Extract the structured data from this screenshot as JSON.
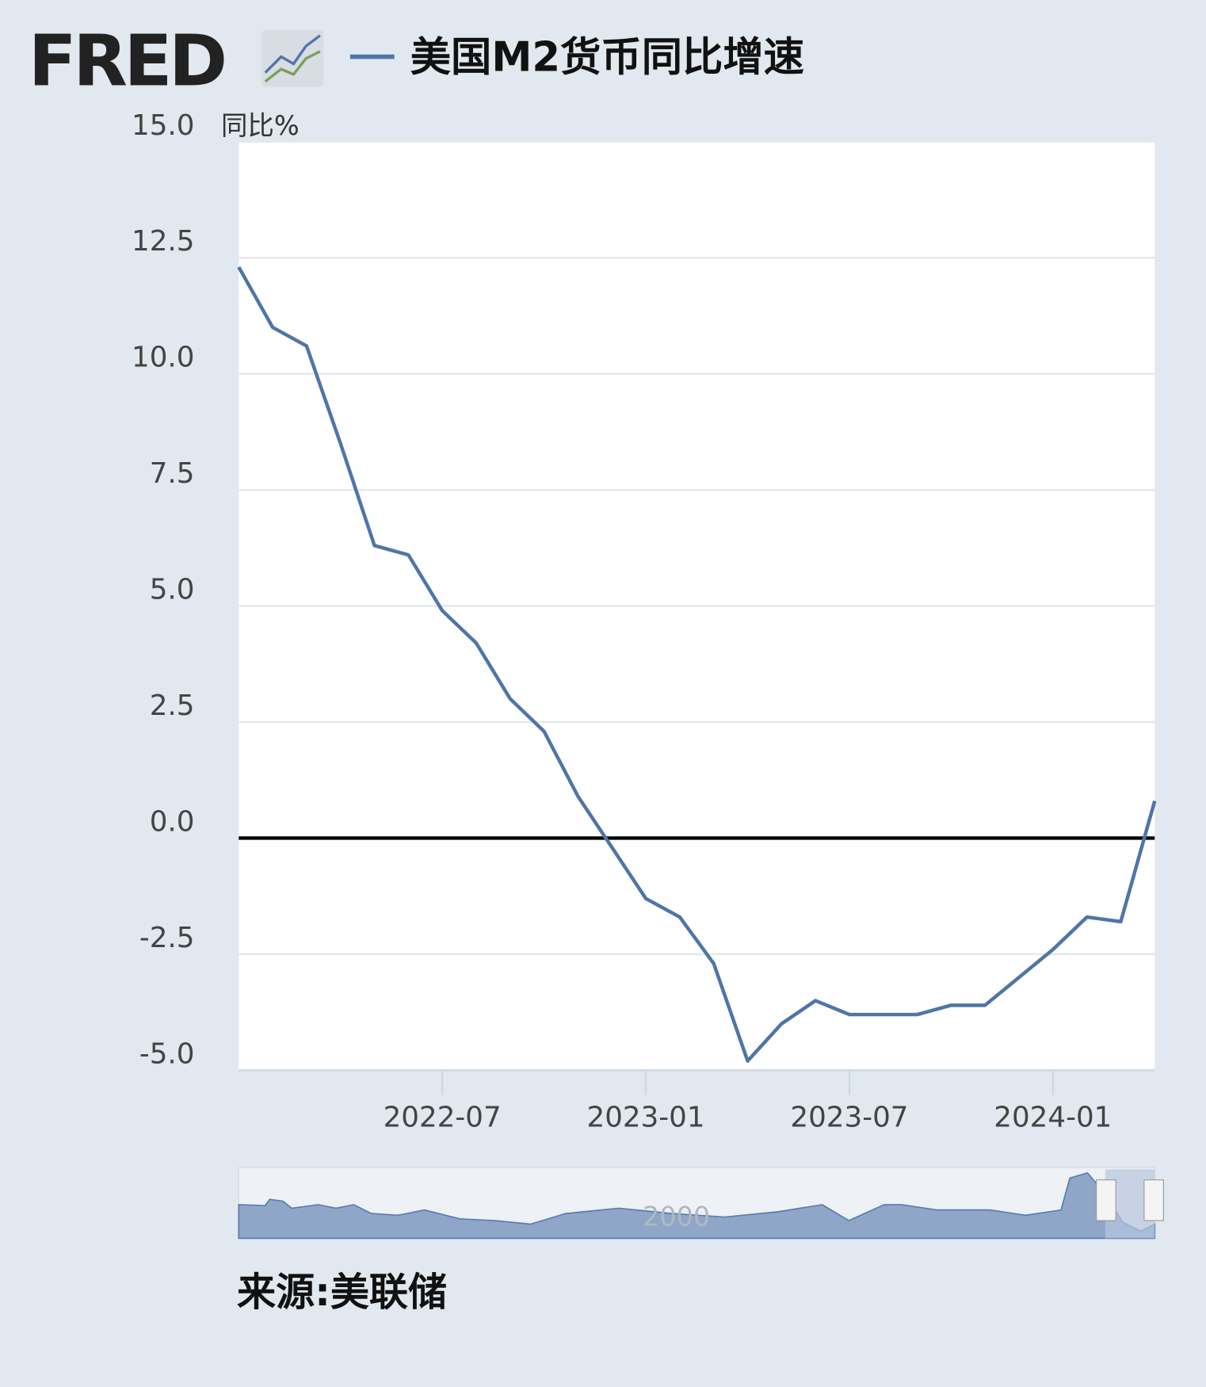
{
  "logo": "FRED",
  "chart_data": {
    "type": "line",
    "y_label": "同比%",
    "source": "来源:美联储",
    "navigator_label": "2000",
    "x": [
      "2022-01",
      "2022-02",
      "2022-03",
      "2022-04",
      "2022-05",
      "2022-06",
      "2022-07",
      "2022-08",
      "2022-09",
      "2022-10",
      "2022-11",
      "2022-12",
      "2023-01",
      "2023-02",
      "2023-03",
      "2023-04",
      "2023-05",
      "2023-06",
      "2023-07",
      "2023-08",
      "2023-09",
      "2023-10",
      "2023-11",
      "2023-12",
      "2024-01",
      "2024-02",
      "2024-03",
      "2024-04"
    ],
    "series": [
      {
        "name": "美国M2货币同比增速",
        "color": "#4f75a8",
        "values": [
          12.3,
          11.0,
          10.6,
          8.5,
          6.3,
          6.1,
          4.9,
          4.2,
          3.0,
          2.3,
          0.9,
          -0.2,
          -1.3,
          -1.7,
          -2.7,
          -4.8,
          -4.0,
          -3.5,
          -3.8,
          -3.8,
          -3.8,
          -3.6,
          -3.6,
          -3.0,
          -2.4,
          -1.7,
          -1.8,
          0.8
        ]
      }
    ],
    "xlim": [
      "2022-01",
      "2024-04"
    ],
    "xticks": [
      "2022-07",
      "2023-01",
      "2023-07",
      "2024-01"
    ],
    "ylim": [
      -5,
      15
    ],
    "yticks": [
      {
        "value": -5,
        "label": "-5.0"
      },
      {
        "value": -2.5,
        "label": "-2.5"
      },
      {
        "value": 0,
        "label": "0.0"
      },
      {
        "value": 2.5,
        "label": "2.5"
      },
      {
        "value": 5,
        "label": "5.0"
      },
      {
        "value": 7.5,
        "label": "7.5"
      },
      {
        "value": 10,
        "label": "10.0"
      },
      {
        "value": 12.5,
        "label": "12.5"
      },
      {
        "value": 15,
        "label": "15.0"
      }
    ],
    "grid": true
  }
}
